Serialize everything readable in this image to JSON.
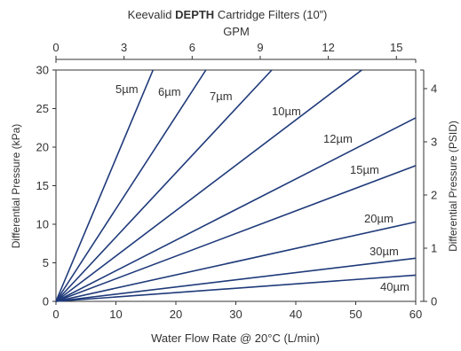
{
  "colors": {
    "line": "#1f3a7a",
    "axis": "#333333",
    "text": "#333333"
  },
  "chart_data": {
    "type": "line",
    "title_parts": [
      "Keevalid ",
      "DEPTH",
      " Cartridge Filters (10”)"
    ],
    "xlabel": "Water Flow Rate @ 20°C (L/min)",
    "ylabel": "Differential Pressure (kPa)",
    "top_xlabel": "GPM",
    "right_ylabel": "Differential Pressure (PSID)",
    "xlim": [
      0,
      60
    ],
    "ylim": [
      0,
      30
    ],
    "top_xlim": [
      0,
      15.85
    ],
    "right_ylim": [
      0,
      4.35
    ],
    "x_ticks": [
      "0",
      "10",
      "20",
      "30",
      "40",
      "50",
      "60"
    ],
    "y_ticks": [
      "0",
      "5",
      "10",
      "15",
      "20",
      "25",
      "30"
    ],
    "top_ticks": [
      "0",
      "3",
      "6",
      "9",
      "12",
      "15"
    ],
    "right_ticks": [
      "0",
      "1",
      "2",
      "3",
      "4"
    ],
    "grid": false,
    "series": [
      {
        "name": "5µm",
        "x": [
          0,
          16.2
        ],
        "y": [
          0,
          30
        ]
      },
      {
        "name": "6µm",
        "x": [
          0,
          25.0
        ],
        "y": [
          0,
          30
        ]
      },
      {
        "name": "7µm",
        "x": [
          0,
          36.0
        ],
        "y": [
          0,
          30
        ]
      },
      {
        "name": "10µm",
        "x": [
          0,
          51.0
        ],
        "y": [
          0,
          30
        ]
      },
      {
        "name": "12µm",
        "x": [
          0,
          60
        ],
        "y": [
          0,
          23.8
        ]
      },
      {
        "name": "15µm",
        "x": [
          0,
          60
        ],
        "y": [
          0,
          17.6
        ]
      },
      {
        "name": "20µm",
        "x": [
          0,
          60
        ],
        "y": [
          0,
          10.3
        ]
      },
      {
        "name": "30µm",
        "x": [
          0,
          60
        ],
        "y": [
          0,
          5.6
        ]
      },
      {
        "name": "40µm",
        "x": [
          0,
          60
        ],
        "y": [
          0,
          3.4
        ]
      }
    ]
  }
}
